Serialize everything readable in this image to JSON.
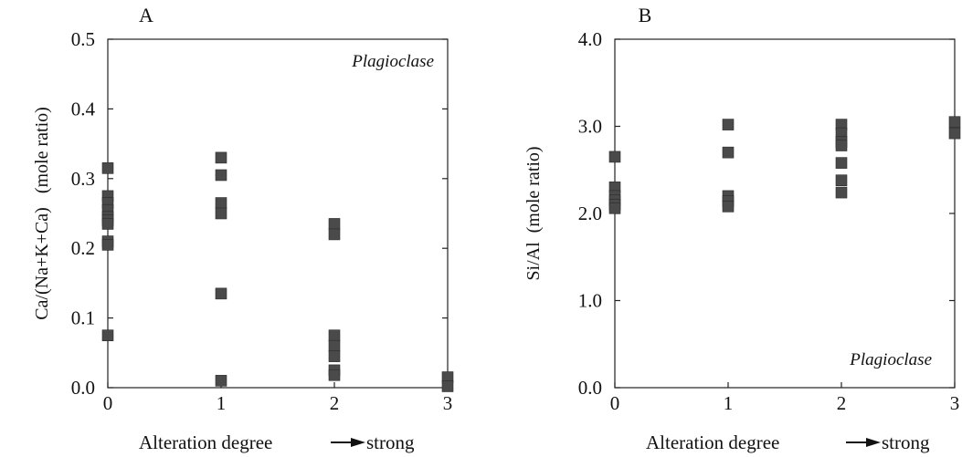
{
  "chart_data": [
    {
      "panel_label": "A",
      "type": "scatter",
      "annotation": "Plagioclase",
      "xlabel": "Alteration degree",
      "xlabel_arrow_text": "strong",
      "ylabel": "Ca/(Na+K+Ca)   (mole ratio)",
      "xlim": [
        0,
        3
      ],
      "ylim": [
        0,
        0.5
      ],
      "x_ticks": [
        0,
        1,
        2,
        3
      ],
      "x_tick_labels": [
        "0",
        "1",
        "2",
        "3"
      ],
      "y_ticks": [
        0,
        0.1,
        0.2,
        0.3,
        0.4,
        0.5
      ],
      "y_tick_labels": [
        "0.0",
        "0.1",
        "0.2",
        "0.3",
        "0.4",
        "0.5"
      ],
      "marker_color": "#4a4a4a",
      "points": [
        {
          "x": 0,
          "y": 0.315
        },
        {
          "x": 0,
          "y": 0.275
        },
        {
          "x": 0,
          "y": 0.265
        },
        {
          "x": 0,
          "y": 0.255
        },
        {
          "x": 0,
          "y": 0.245
        },
        {
          "x": 0,
          "y": 0.24
        },
        {
          "x": 0,
          "y": 0.235
        },
        {
          "x": 0,
          "y": 0.21
        },
        {
          "x": 0,
          "y": 0.205
        },
        {
          "x": 0,
          "y": 0.075
        },
        {
          "x": 1,
          "y": 0.33
        },
        {
          "x": 1,
          "y": 0.305
        },
        {
          "x": 1,
          "y": 0.265
        },
        {
          "x": 1,
          "y": 0.25
        },
        {
          "x": 1,
          "y": 0.135
        },
        {
          "x": 1,
          "y": 0.01
        },
        {
          "x": 2,
          "y": 0.235
        },
        {
          "x": 2,
          "y": 0.22
        },
        {
          "x": 2,
          "y": 0.075
        },
        {
          "x": 2,
          "y": 0.06
        },
        {
          "x": 2,
          "y": 0.045
        },
        {
          "x": 2,
          "y": 0.025
        },
        {
          "x": 2,
          "y": 0.018
        },
        {
          "x": 3,
          "y": 0.015
        },
        {
          "x": 3,
          "y": 0.002
        }
      ]
    },
    {
      "panel_label": "B",
      "type": "scatter",
      "annotation": "Plagioclase",
      "xlabel": "Alteration degree",
      "xlabel_arrow_text": "strong",
      "ylabel": "Si/Al  (mole ratio)",
      "xlim": [
        0,
        3
      ],
      "ylim": [
        0,
        4
      ],
      "x_ticks": [
        0,
        1,
        2,
        3
      ],
      "x_tick_labels": [
        "0",
        "1",
        "2",
        "3"
      ],
      "y_ticks": [
        0,
        1,
        2,
        3,
        4
      ],
      "y_tick_labels": [
        "0.0",
        "1.0",
        "2.0",
        "3.0",
        "4.0"
      ],
      "marker_color": "#4a4a4a",
      "points": [
        {
          "x": 0,
          "y": 2.65
        },
        {
          "x": 0,
          "y": 2.3
        },
        {
          "x": 0,
          "y": 2.2
        },
        {
          "x": 0,
          "y": 2.15
        },
        {
          "x": 0,
          "y": 2.1
        },
        {
          "x": 0,
          "y": 2.06
        },
        {
          "x": 1,
          "y": 3.02
        },
        {
          "x": 1,
          "y": 2.7
        },
        {
          "x": 1,
          "y": 2.2
        },
        {
          "x": 1,
          "y": 2.14
        },
        {
          "x": 1,
          "y": 2.08
        },
        {
          "x": 2,
          "y": 3.02
        },
        {
          "x": 2,
          "y": 2.92
        },
        {
          "x": 2,
          "y": 2.82
        },
        {
          "x": 2,
          "y": 2.78
        },
        {
          "x": 2,
          "y": 2.58
        },
        {
          "x": 2,
          "y": 2.38
        },
        {
          "x": 2,
          "y": 2.24
        },
        {
          "x": 3,
          "y": 3.05
        },
        {
          "x": 3,
          "y": 2.92
        }
      ]
    }
  ]
}
